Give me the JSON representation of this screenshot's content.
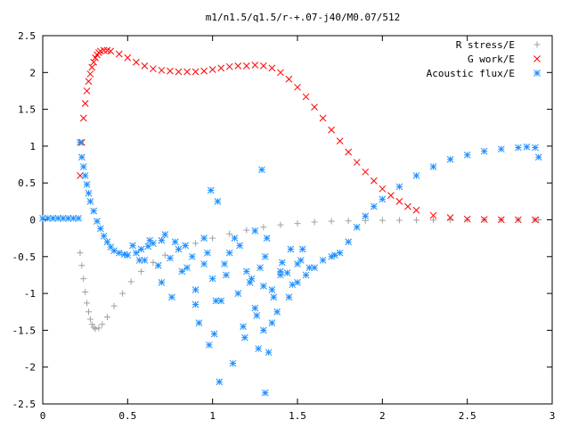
{
  "chart_data": {
    "type": "scatter",
    "title": "m1/n1.5/q1.5/r-+.07-j40/M0.07/512",
    "xlabel": "",
    "ylabel": "",
    "xlim": [
      0,
      3
    ],
    "ylim": [
      -2.5,
      2.5
    ],
    "xticks": [
      "0",
      "0.5",
      "1",
      "1.5",
      "2",
      "2.5",
      "3"
    ],
    "yticks": [
      "-2.5",
      "-2",
      "-1.5",
      "-1",
      "-0.5",
      "0",
      "0.5",
      "1",
      "1.5",
      "2",
      "2.5"
    ],
    "grid": false,
    "legend_position": "top-right",
    "series": [
      {
        "name": "R stress/E",
        "marker": "plus",
        "color": "#a0a0a0",
        "x": [
          0.22,
          0.23,
          0.24,
          0.25,
          0.26,
          0.27,
          0.28,
          0.29,
          0.3,
          0.31,
          0.33,
          0.35,
          0.38,
          0.42,
          0.47,
          0.52,
          0.58,
          0.65,
          0.72,
          0.8,
          0.9,
          1.0,
          1.1,
          1.2,
          1.3,
          1.4,
          1.5,
          1.6,
          1.7,
          1.8,
          1.9,
          2.0,
          2.1,
          2.2,
          2.3,
          2.4,
          2.5,
          2.6,
          2.7,
          2.8,
          2.9,
          2.92
        ],
        "y": [
          -0.45,
          -0.62,
          -0.8,
          -0.98,
          -1.13,
          -1.25,
          -1.35,
          -1.42,
          -1.46,
          -1.48,
          -1.47,
          -1.42,
          -1.32,
          -1.17,
          -1.0,
          -0.84,
          -0.7,
          -0.58,
          -0.48,
          -0.4,
          -0.32,
          -0.25,
          -0.19,
          -0.14,
          -0.1,
          -0.07,
          -0.05,
          -0.03,
          -0.02,
          -0.015,
          -0.01,
          -0.008,
          -0.006,
          -0.004,
          -0.003,
          -0.002,
          -0.001,
          0,
          0,
          0,
          0,
          0
        ]
      },
      {
        "name": "G work/E",
        "marker": "cross",
        "color": "#ff0000",
        "x": [
          0.22,
          0.23,
          0.24,
          0.25,
          0.26,
          0.27,
          0.28,
          0.29,
          0.3,
          0.31,
          0.32,
          0.33,
          0.34,
          0.36,
          0.38,
          0.4,
          0.45,
          0.5,
          0.55,
          0.6,
          0.65,
          0.7,
          0.75,
          0.8,
          0.85,
          0.9,
          0.95,
          1.0,
          1.05,
          1.1,
          1.15,
          1.2,
          1.25,
          1.3,
          1.35,
          1.4,
          1.45,
          1.5,
          1.55,
          1.6,
          1.65,
          1.7,
          1.75,
          1.8,
          1.85,
          1.9,
          1.95,
          2.0,
          2.05,
          2.1,
          2.15,
          2.2,
          2.3,
          2.4,
          2.5,
          2.6,
          2.7,
          2.8,
          2.9
        ],
        "y": [
          0.6,
          1.05,
          1.38,
          1.58,
          1.75,
          1.88,
          1.98,
          2.07,
          2.14,
          2.2,
          2.24,
          2.27,
          2.29,
          2.3,
          2.3,
          2.29,
          2.25,
          2.2,
          2.14,
          2.09,
          2.05,
          2.03,
          2.02,
          2.01,
          2.01,
          2.01,
          2.02,
          2.04,
          2.06,
          2.08,
          2.09,
          2.09,
          2.1,
          2.09,
          2.06,
          2.0,
          1.91,
          1.8,
          1.67,
          1.53,
          1.38,
          1.22,
          1.07,
          0.92,
          0.78,
          0.65,
          0.53,
          0.42,
          0.33,
          0.25,
          0.18,
          0.13,
          0.06,
          0.03,
          0.01,
          0.005,
          0.002,
          0.001,
          0
        ]
      },
      {
        "name": "Acoustic flux/E",
        "marker": "star",
        "color": "#1e90ff",
        "x": [
          0.0,
          0.03,
          0.06,
          0.09,
          0.12,
          0.15,
          0.18,
          0.21,
          0.22,
          0.23,
          0.24,
          0.25,
          0.26,
          0.27,
          0.28,
          0.3,
          0.32,
          0.34,
          0.36,
          0.38,
          0.4,
          0.42,
          0.45,
          0.48,
          0.5,
          0.55,
          0.58,
          0.62,
          0.65,
          0.7,
          0.75,
          0.8,
          0.85,
          0.9,
          0.95,
          1.0,
          1.05,
          1.1,
          1.15,
          1.2,
          1.25,
          1.3,
          1.35,
          1.4,
          1.45,
          1.5,
          1.55,
          1.6,
          1.65,
          1.7,
          1.72,
          1.75,
          1.8,
          1.85,
          1.9,
          1.95,
          2.0,
          2.1,
          2.2,
          2.3,
          2.4,
          2.5,
          2.6,
          2.7,
          2.8,
          2.85,
          2.9,
          2.92,
          0.53,
          0.57,
          0.63,
          0.68,
          0.72,
          0.78,
          0.82,
          0.88,
          0.92,
          0.95,
          0.98,
          1.02,
          1.04,
          1.07,
          1.12,
          1.16,
          1.19,
          1.23,
          1.26,
          1.28,
          1.29,
          1.3,
          1.32,
          1.33,
          1.35,
          1.38,
          1.41,
          1.44,
          1.47,
          1.5,
          1.53,
          0.6,
          0.7,
          0.76,
          0.84,
          0.9,
          0.97,
          1.01,
          1.08,
          1.13,
          1.18,
          1.22,
          1.27,
          1.31,
          1.36,
          1.4,
          1.46,
          1.52,
          1.57,
          0.99,
          1.03,
          1.25,
          1.31
        ],
        "y": [
          0.02,
          0.02,
          0.02,
          0.02,
          0.02,
          0.02,
          0.02,
          0.02,
          1.05,
          0.85,
          0.72,
          0.6,
          0.48,
          0.36,
          0.25,
          0.12,
          -0.02,
          -0.12,
          -0.22,
          -0.3,
          -0.37,
          -0.42,
          -0.45,
          -0.47,
          -0.48,
          -0.45,
          -0.4,
          -0.36,
          -0.32,
          -0.28,
          -0.52,
          -0.4,
          -0.65,
          -0.95,
          -0.6,
          -0.8,
          -1.1,
          -0.45,
          -1.0,
          -0.7,
          -1.2,
          -0.9,
          -1.4,
          -0.7,
          -1.05,
          -0.85,
          -0.75,
          -0.65,
          -0.55,
          -0.5,
          -0.48,
          -0.45,
          -0.3,
          -0.1,
          0.05,
          0.18,
          0.28,
          0.45,
          0.6,
          0.72,
          0.82,
          0.88,
          0.93,
          0.96,
          0.98,
          0.99,
          0.98,
          0.85,
          -0.35,
          -0.55,
          -0.28,
          -0.62,
          -0.2,
          -0.3,
          -0.7,
          -0.5,
          -1.4,
          -0.25,
          -1.7,
          -1.1,
          -2.2,
          -0.6,
          -1.95,
          -0.35,
          -1.6,
          -0.8,
          -1.3,
          -0.65,
          0.68,
          -1.5,
          -0.25,
          -1.8,
          -0.95,
          -1.25,
          -0.58,
          -0.72,
          -0.88,
          -0.6,
          -0.4,
          -0.55,
          -0.85,
          -1.05,
          -0.35,
          -1.15,
          -0.45,
          -1.55,
          -0.75,
          -0.25,
          -1.45,
          -0.85,
          -1.75,
          -0.5,
          -1.05,
          -0.75,
          -0.4,
          -0.55,
          -0.65,
          0.4,
          0.25,
          -0.15,
          -2.35
        ]
      }
    ]
  }
}
